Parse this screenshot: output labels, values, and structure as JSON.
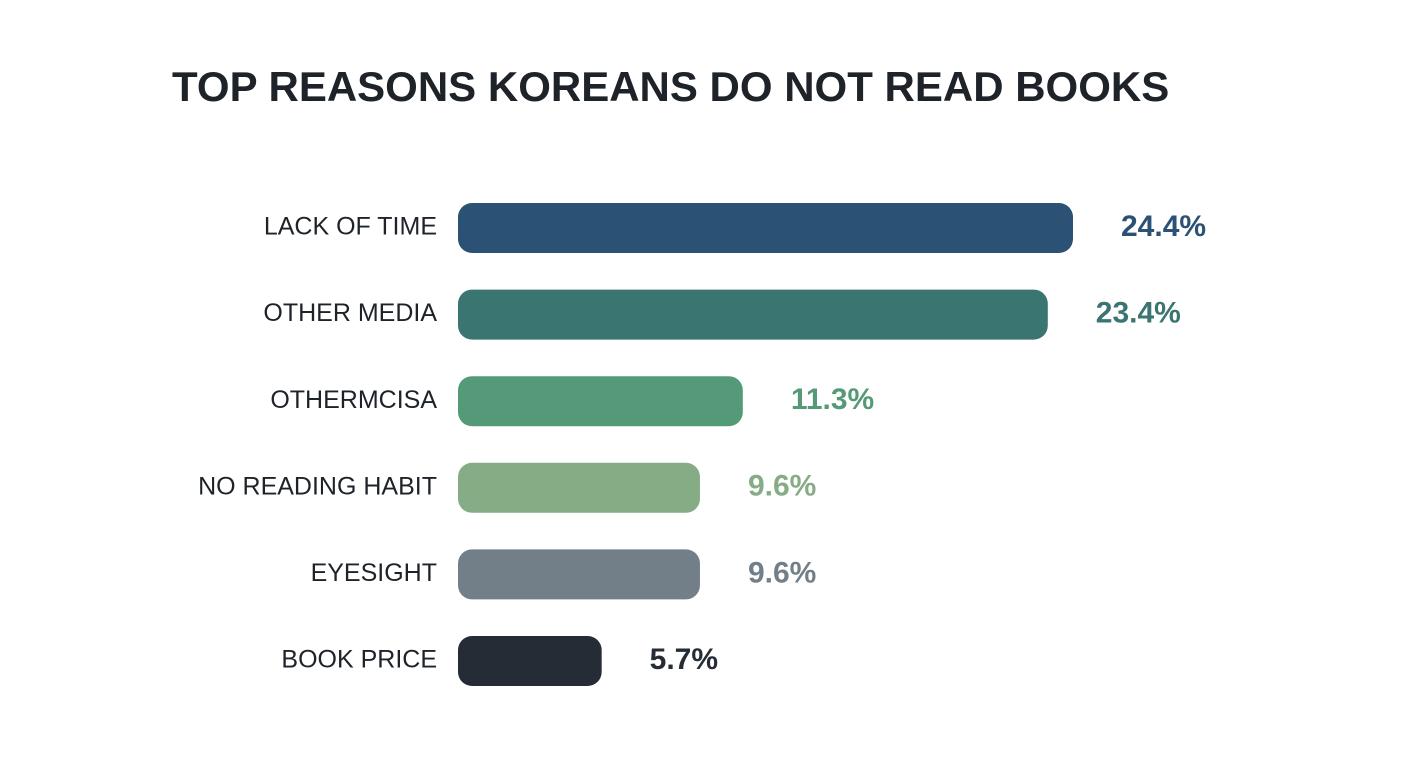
{
  "chart_data": {
    "type": "bar",
    "orientation": "horizontal",
    "title": "TOP REASONS KOREANS DO NOT READ BOOKS",
    "categories": [
      "LACK OF TIME",
      "OTHER MEDIA",
      "OTHERMCISA",
      "NO READING HABIT",
      "EYESIGHT",
      "BOOK PRICE"
    ],
    "values": [
      24.4,
      23.4,
      11.3,
      9.6,
      9.6,
      5.7
    ],
    "value_labels": [
      "24.4%",
      "23.4%",
      "11.3%",
      "9.6%",
      "9.6%",
      "5.7%"
    ],
    "colors": [
      "#2b5174",
      "#3a7572",
      "#559a78",
      "#86ac86",
      "#737f88",
      "#252c36"
    ]
  }
}
